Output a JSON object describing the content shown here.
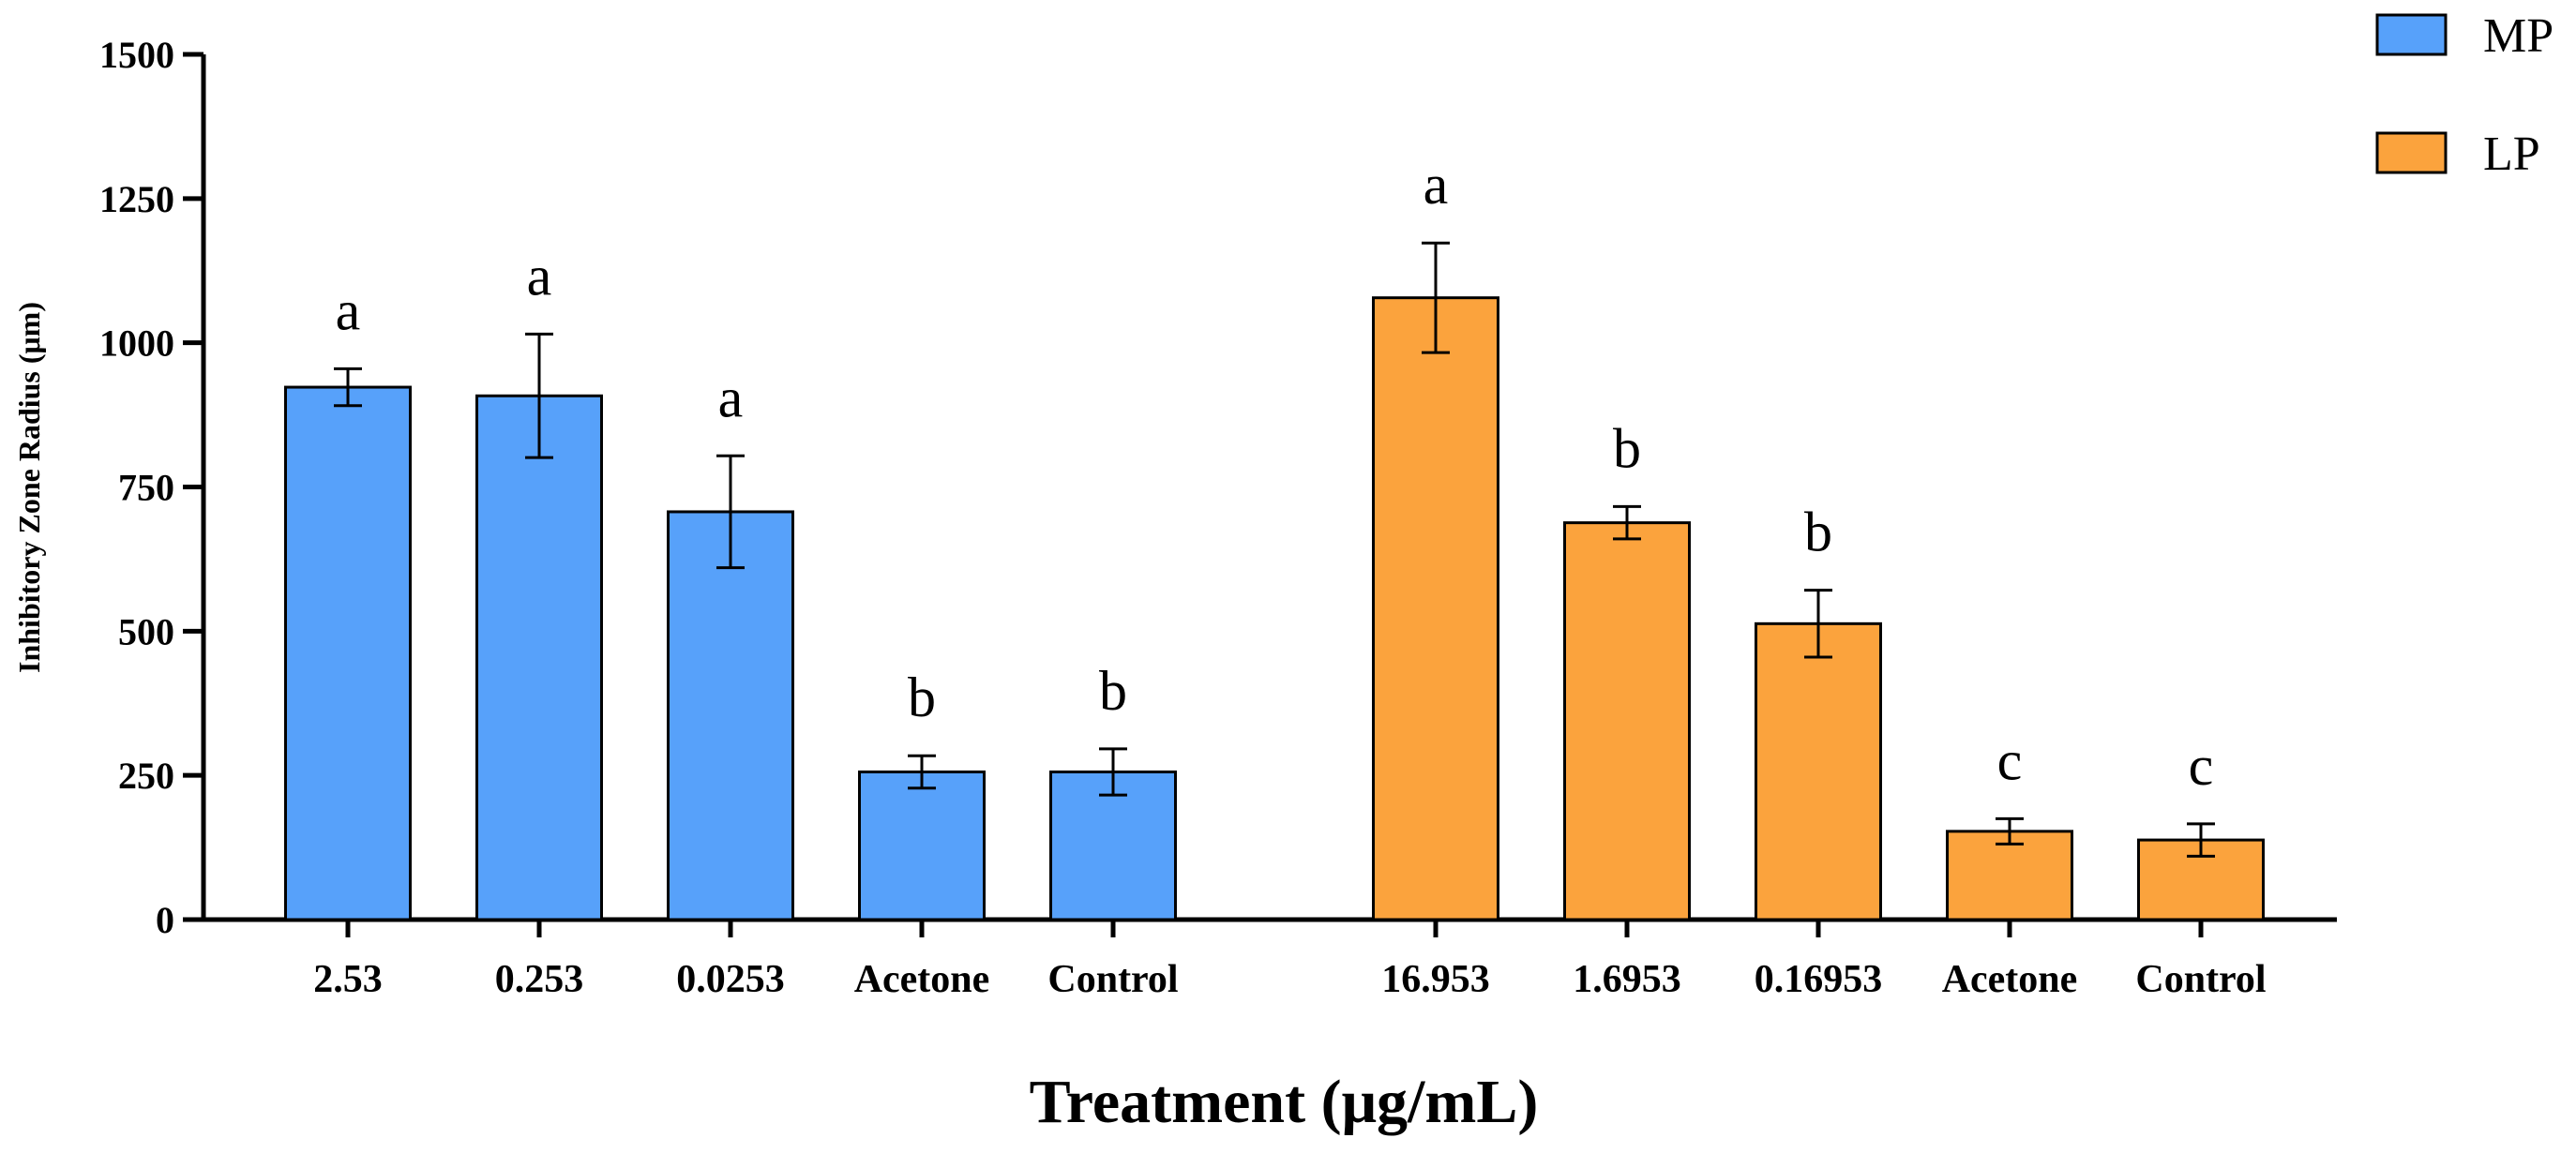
{
  "chart_data": {
    "type": "bar",
    "title": "",
    "xlabel": "Treatment (μg/mL)",
    "ylabel": "Inhibitory Zone Radius (μm)",
    "ylim": [
      0,
      1500
    ],
    "yticks": [
      0,
      250,
      500,
      750,
      1000,
      1250,
      1500
    ],
    "grid": false,
    "legend_position": "top-right",
    "series": [
      {
        "name": "MP",
        "color": "#57a1fa",
        "categories": [
          "2.53",
          "0.253",
          "0.0253",
          "Acetone",
          "Control"
        ],
        "values": [
          923,
          908,
          707,
          256,
          256
        ],
        "errors": [
          32,
          107,
          97,
          28,
          40
        ],
        "significance": [
          "a",
          "a",
          "a",
          "b",
          "b"
        ]
      },
      {
        "name": "LP",
        "color": "#fba33d",
        "categories": [
          "16.953",
          "1.6953",
          "0.16953",
          "Acetone",
          "Control"
        ],
        "values": [
          1078,
          688,
          513,
          153,
          138
        ],
        "errors": [
          95,
          28,
          58,
          22,
          28
        ],
        "significance": [
          "a",
          "b",
          "b",
          "c",
          "c"
        ]
      }
    ]
  }
}
